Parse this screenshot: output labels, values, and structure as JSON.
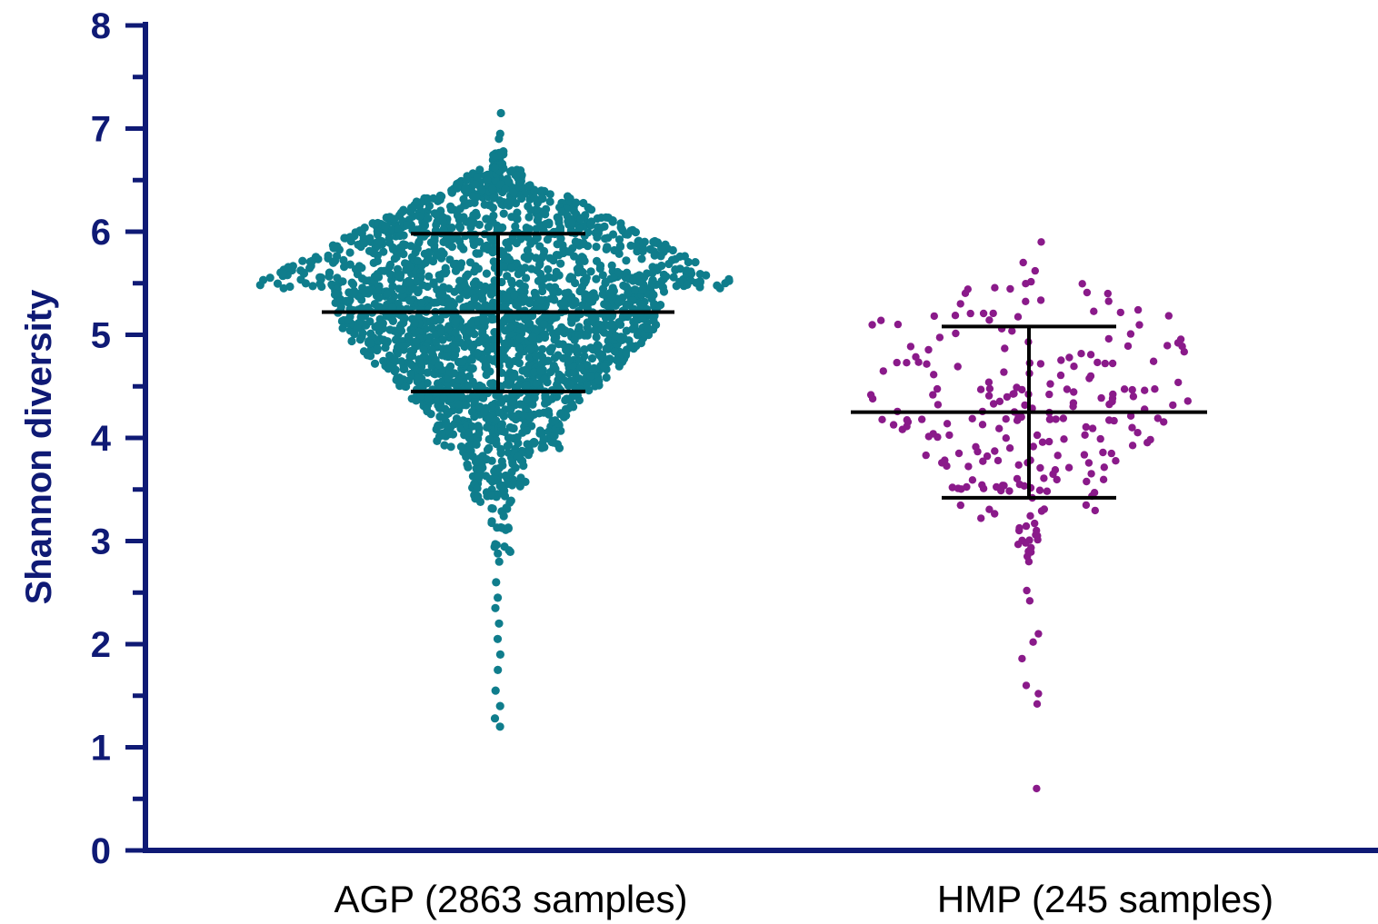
{
  "chart_data": {
    "type": "scatter",
    "subtype": "beeswarm",
    "ylabel": "Shannon diversity",
    "xlabel": "",
    "ylim": [
      0,
      8
    ],
    "yticks": [
      "0",
      "1",
      "2",
      "3",
      "4",
      "5",
      "6",
      "7",
      "8"
    ],
    "categories": [
      "AGP (2863 samples)",
      "HMP (245 samples)"
    ],
    "series": [
      {
        "category": "AGP (2863 samples)",
        "color": "#0f7d8c",
        "n": 2863,
        "mean": 5.22,
        "sd_upper": 5.98,
        "sd_lower": 4.45,
        "max": 7.15,
        "min": 1.2,
        "highlights": [
          7.15,
          6.95,
          6.9,
          2.8,
          2.6,
          2.45,
          2.35,
          2.2,
          2.05,
          1.9,
          1.75,
          1.55,
          1.4,
          1.28,
          1.2
        ]
      },
      {
        "category": "HMP (245 samples)",
        "color": "#8a1a8a",
        "n": 245,
        "mean": 4.25,
        "sd_upper": 5.08,
        "sd_lower": 3.42,
        "max": 5.9,
        "min": 0.6,
        "highlights": [
          5.9,
          5.7,
          5.62,
          2.9,
          2.85,
          2.8,
          2.52,
          2.42,
          2.1,
          2.02,
          1.86,
          1.6,
          1.52,
          1.42,
          0.6
        ]
      }
    ],
    "colors": {
      "axis": "#0f1a75",
      "bars": "#000000"
    }
  }
}
